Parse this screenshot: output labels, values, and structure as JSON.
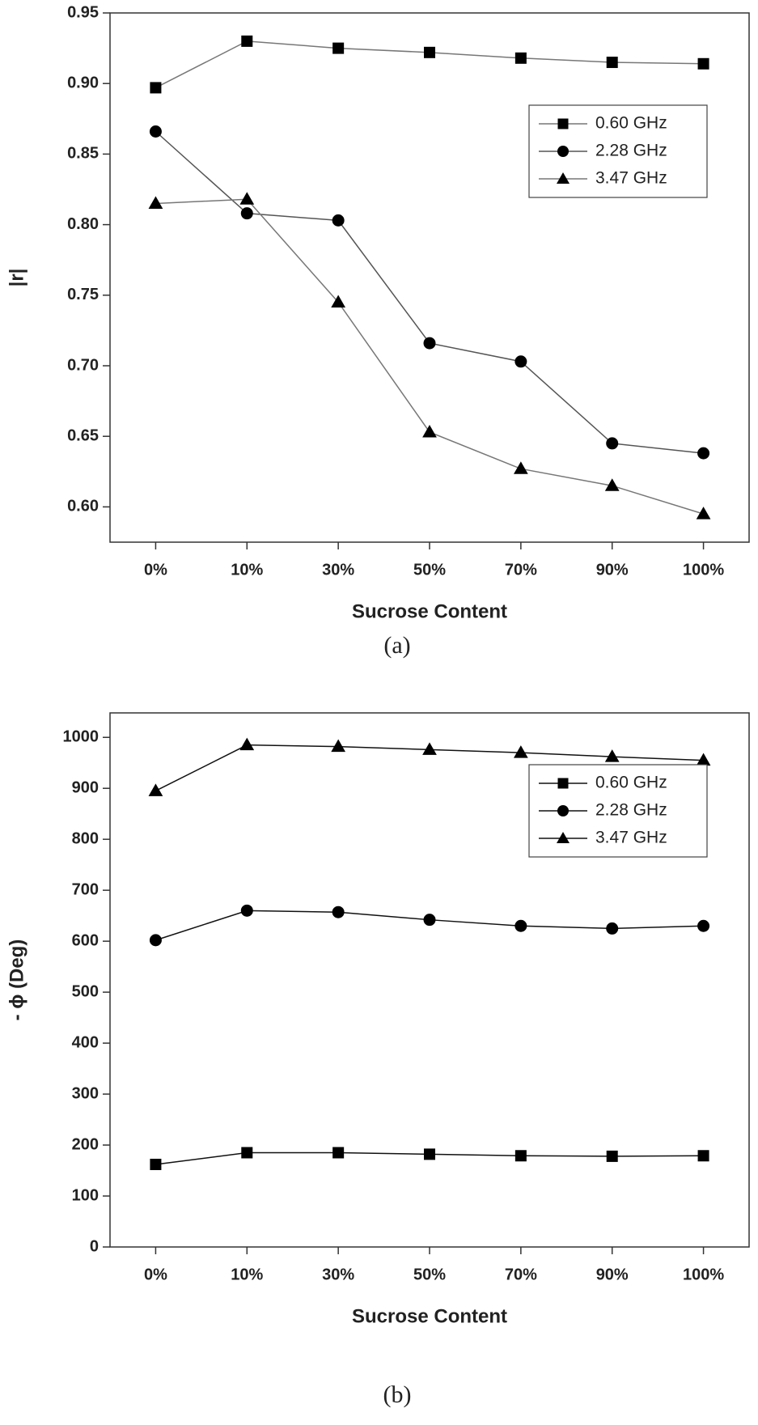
{
  "chart_data": [
    {
      "type": "line",
      "caption": "(a)",
      "x_label": "Sucrose Content",
      "y_label": "|r|",
      "categories": [
        "0%",
        "10%",
        "30%",
        "50%",
        "70%",
        "90%",
        "100%"
      ],
      "ylim": [
        0.575,
        0.95
      ],
      "yticks": [
        {
          "value": 0.6,
          "label": "0.60"
        },
        {
          "value": 0.65,
          "label": "0.65"
        },
        {
          "value": 0.7,
          "label": "0.70"
        },
        {
          "value": 0.75,
          "label": "0.75"
        },
        {
          "value": 0.8,
          "label": "0.80"
        },
        {
          "value": 0.85,
          "label": "0.85"
        },
        {
          "value": 0.9,
          "label": "0.90"
        },
        0.95
      ],
      "legend": "upper right",
      "series": [
        {
          "name": "0.60 GHz",
          "color": "#777777",
          "marker": "square",
          "values": [
            0.897,
            0.93,
            0.925,
            0.922,
            0.918,
            0.915,
            0.914
          ]
        },
        {
          "name": "2.28 GHz",
          "color": "#555555",
          "marker": "circle",
          "values": [
            0.866,
            0.808,
            0.803,
            0.716,
            0.703,
            0.645,
            0.638
          ]
        },
        {
          "name": "3.47 GHz",
          "color": "#777777",
          "marker": "triangle",
          "values": [
            0.815,
            0.818,
            0.745,
            0.653,
            0.627,
            0.615,
            0.595
          ]
        }
      ]
    },
    {
      "type": "line",
      "caption": "(b)",
      "x_label": "Sucrose Content",
      "y_label": "- ϕ (Deg)",
      "categories": [
        "0%",
        "10%",
        "30%",
        "50%",
        "70%",
        "90%",
        "100%"
      ],
      "ylim": [
        0,
        1048
      ],
      "yticks": [
        0,
        100,
        200,
        300,
        400,
        500,
        600,
        700,
        800,
        900,
        1000
      ],
      "legend": "upper right",
      "series": [
        {
          "name": "0.60 GHz",
          "color": "#111111",
          "marker": "square",
          "values": [
            162,
            185,
            185,
            182,
            179,
            178,
            179
          ]
        },
        {
          "name": "2.28 GHz",
          "color": "#111111",
          "marker": "circle",
          "values": [
            602,
            660,
            657,
            642,
            630,
            625,
            630
          ]
        },
        {
          "name": "3.47 GHz",
          "color": "#111111",
          "marker": "triangle",
          "values": [
            895,
            985,
            982,
            976,
            970,
            962,
            955
          ]
        }
      ]
    }
  ]
}
